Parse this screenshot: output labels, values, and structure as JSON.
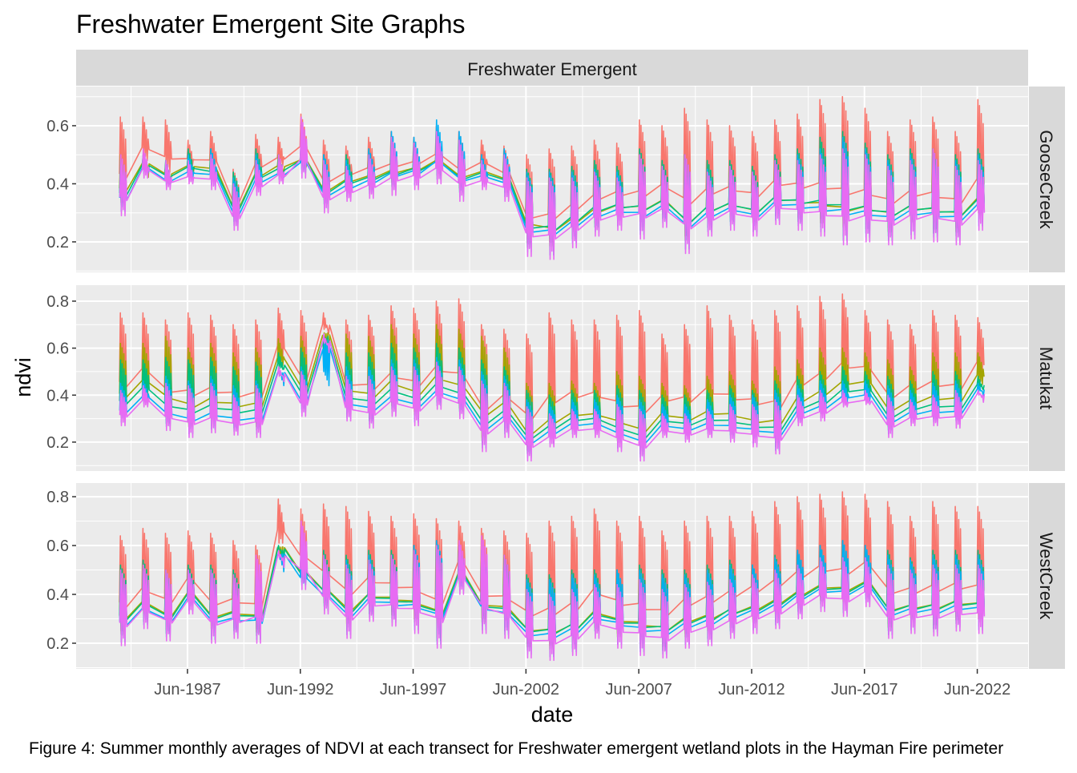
{
  "chart_data": {
    "type": "line",
    "title": "Freshwater Emergent Site Graphs",
    "facet_col_label": "Freshwater Emergent",
    "xlabel": "date",
    "ylabel": "ndvi",
    "caption": "Figure 4: Summer monthly averages of NDVI at each transect for Freshwater emergent wetland plots in the Hayman Fire perimeter",
    "x_ticks": [
      "Jun-1987",
      "Jun-1992",
      "Jun-1997",
      "Jun-2002",
      "Jun-2007",
      "Jun-2012",
      "Jun-2017",
      "Jun-2022"
    ],
    "x_tick_dates": [
      "1987-06-01",
      "1992-06-01",
      "1997-06-01",
      "2002-06-01",
      "2007-06-01",
      "2012-06-01",
      "2017-06-01",
      "2022-06-01"
    ],
    "xlim": [
      "1982-06-25",
      "2024-09-01"
    ],
    "grid": true,
    "legend": "none",
    "series_colors": [
      "#F8766D",
      "#A3A500",
      "#00BF7D",
      "#00B0F6",
      "#E76BF3"
    ],
    "years": [
      1984,
      1985,
      1986,
      1987,
      1988,
      1989,
      1990,
      1991,
      1992,
      1993,
      1994,
      1995,
      1996,
      1997,
      1998,
      1999,
      2000,
      2001,
      2002,
      2003,
      2004,
      2005,
      2006,
      2007,
      2008,
      2009,
      2010,
      2011,
      2012,
      2013,
      2014,
      2015,
      2016,
      2017,
      2018,
      2019,
      2020,
      2021,
      2022
    ],
    "panels": [
      {
        "label": "GooseCreek",
        "ylim": [
          0.095,
          0.735
        ],
        "y_ticks": [
          "0.2",
          "0.4",
          "0.6"
        ],
        "summer_low": [
          0.29,
          0.42,
          0.38,
          0.4,
          0.38,
          0.24,
          0.36,
          0.4,
          0.42,
          0.3,
          0.34,
          0.35,
          0.36,
          0.38,
          0.4,
          0.34,
          0.38,
          0.34,
          0.15,
          0.14,
          0.18,
          0.22,
          0.24,
          0.21,
          0.25,
          0.16,
          0.22,
          0.24,
          0.22,
          0.26,
          0.24,
          0.22,
          0.19,
          0.2,
          0.19,
          0.21,
          0.2,
          0.19,
          0.24
        ],
        "series_peaks": [
          [
            0.63,
            0.63,
            0.62,
            0.55,
            0.58,
            0.45,
            0.57,
            0.56,
            0.64,
            0.55,
            0.53,
            0.56,
            0.58,
            0.56,
            0.6,
            0.58,
            0.55,
            0.53,
            0.5,
            0.52,
            0.53,
            0.55,
            0.54,
            0.62,
            0.6,
            0.66,
            0.62,
            0.6,
            0.58,
            0.62,
            0.64,
            0.69,
            0.7,
            0.66,
            0.58,
            0.62,
            0.63,
            0.58,
            0.69
          ],
          [
            0.5,
            0.48,
            0.46,
            0.5,
            0.52,
            0.42,
            0.5,
            0.5,
            0.52,
            0.48,
            0.48,
            0.5,
            0.54,
            0.52,
            0.56,
            0.54,
            0.48,
            0.5,
            0.45,
            0.4,
            0.4,
            0.42,
            0.42,
            0.48,
            0.45,
            0.46,
            0.44,
            0.44,
            0.42,
            0.46,
            0.48,
            0.5,
            0.52,
            0.5,
            0.46,
            0.48,
            0.48,
            0.46,
            0.5
          ],
          [
            0.48,
            0.5,
            0.48,
            0.52,
            0.52,
            0.44,
            0.52,
            0.5,
            0.55,
            0.5,
            0.5,
            0.52,
            0.56,
            0.55,
            0.58,
            0.56,
            0.5,
            0.52,
            0.45,
            0.45,
            0.46,
            0.48,
            0.46,
            0.52,
            0.48,
            0.5,
            0.48,
            0.48,
            0.46,
            0.5,
            0.52,
            0.56,
            0.58,
            0.54,
            0.5,
            0.52,
            0.52,
            0.5,
            0.52
          ],
          [
            0.46,
            0.5,
            0.46,
            0.5,
            0.52,
            0.42,
            0.5,
            0.48,
            0.56,
            0.5,
            0.48,
            0.52,
            0.58,
            0.56,
            0.62,
            0.58,
            0.5,
            0.52,
            0.44,
            0.44,
            0.44,
            0.45,
            0.44,
            0.48,
            0.46,
            0.48,
            0.45,
            0.46,
            0.44,
            0.48,
            0.5,
            0.52,
            0.56,
            0.52,
            0.48,
            0.5,
            0.5,
            0.48,
            0.5
          ],
          [
            0.5,
            0.52,
            0.48,
            0.48,
            0.5,
            0.4,
            0.48,
            0.5,
            0.63,
            0.48,
            0.46,
            0.5,
            0.56,
            0.54,
            0.58,
            0.55,
            0.48,
            0.5,
            0.42,
            0.42,
            0.42,
            0.44,
            0.42,
            0.5,
            0.46,
            0.5,
            0.44,
            0.46,
            0.44,
            0.48,
            0.48,
            0.5,
            0.52,
            0.5,
            0.46,
            0.48,
            0.52,
            0.46,
            0.48
          ]
        ]
      },
      {
        "label": "Matukat",
        "ylim": [
          0.077,
          0.868
        ],
        "y_ticks": [
          "0.2",
          "0.4",
          "0.6",
          "0.8"
        ],
        "summer_low": [
          0.27,
          0.35,
          0.25,
          0.22,
          0.24,
          0.23,
          0.22,
          0.48,
          0.31,
          0.62,
          0.29,
          0.26,
          0.31,
          0.27,
          0.34,
          0.3,
          0.16,
          0.22,
          0.12,
          0.18,
          0.22,
          0.22,
          0.16,
          0.12,
          0.22,
          0.2,
          0.22,
          0.2,
          0.18,
          0.15,
          0.27,
          0.29,
          0.35,
          0.36,
          0.22,
          0.27,
          0.27,
          0.26,
          0.4
        ],
        "series_peaks": [
          [
            0.75,
            0.75,
            0.72,
            0.75,
            0.74,
            0.7,
            0.72,
            0.77,
            0.76,
            0.75,
            0.72,
            0.74,
            0.78,
            0.77,
            0.8,
            0.81,
            0.7,
            0.68,
            0.66,
            0.75,
            0.72,
            0.72,
            0.74,
            0.76,
            0.66,
            0.7,
            0.78,
            0.74,
            0.72,
            0.76,
            0.78,
            0.82,
            0.83,
            0.76,
            0.72,
            0.7,
            0.76,
            0.74,
            0.73
          ],
          [
            0.62,
            0.62,
            0.65,
            0.6,
            0.62,
            0.58,
            0.6,
            0.64,
            0.65,
            0.63,
            0.66,
            0.65,
            0.7,
            0.66,
            0.7,
            0.68,
            0.65,
            0.6,
            0.45,
            0.45,
            0.46,
            0.45,
            0.5,
            0.48,
            0.45,
            0.44,
            0.48,
            0.5,
            0.46,
            0.52,
            0.55,
            0.6,
            0.6,
            0.58,
            0.55,
            0.52,
            0.58,
            0.58,
            0.58
          ],
          [
            0.55,
            0.55,
            0.56,
            0.55,
            0.56,
            0.52,
            0.54,
            0.58,
            0.6,
            0.58,
            0.58,
            0.58,
            0.62,
            0.6,
            0.62,
            0.6,
            0.55,
            0.52,
            0.42,
            0.4,
            0.42,
            0.42,
            0.44,
            0.42,
            0.4,
            0.4,
            0.42,
            0.44,
            0.42,
            0.46,
            0.48,
            0.5,
            0.52,
            0.5,
            0.48,
            0.46,
            0.5,
            0.5,
            0.48
          ],
          [
            0.45,
            0.46,
            0.48,
            0.46,
            0.48,
            0.44,
            0.46,
            0.5,
            0.52,
            0.5,
            0.52,
            0.52,
            0.55,
            0.55,
            0.56,
            0.55,
            0.5,
            0.48,
            0.38,
            0.36,
            0.38,
            0.38,
            0.4,
            0.38,
            0.36,
            0.36,
            0.38,
            0.4,
            0.4,
            0.42,
            0.44,
            0.46,
            0.46,
            0.46,
            0.44,
            0.42,
            0.45,
            0.46,
            0.45
          ],
          [
            0.42,
            0.44,
            0.45,
            0.44,
            0.45,
            0.4,
            0.44,
            0.52,
            0.5,
            0.66,
            0.48,
            0.48,
            0.52,
            0.52,
            0.54,
            0.52,
            0.46,
            0.45,
            0.35,
            0.32,
            0.34,
            0.34,
            0.36,
            0.34,
            0.32,
            0.32,
            0.34,
            0.36,
            0.36,
            0.38,
            0.4,
            0.42,
            0.42,
            0.42,
            0.4,
            0.38,
            0.4,
            0.42,
            0.42
          ]
        ]
      },
      {
        "label": "WestCreek",
        "ylim": [
          0.095,
          0.856
        ],
        "y_ticks": [
          "0.2",
          "0.4",
          "0.6",
          "0.8"
        ],
        "summer_low": [
          0.19,
          0.26,
          0.21,
          0.32,
          0.2,
          0.22,
          0.2,
          0.55,
          0.42,
          0.32,
          0.22,
          0.29,
          0.27,
          0.24,
          0.18,
          0.4,
          0.24,
          0.22,
          0.14,
          0.13,
          0.15,
          0.22,
          0.18,
          0.15,
          0.14,
          0.18,
          0.19,
          0.22,
          0.24,
          0.26,
          0.3,
          0.33,
          0.31,
          0.35,
          0.22,
          0.24,
          0.23,
          0.25,
          0.24
        ],
        "series_peaks": [
          [
            0.64,
            0.67,
            0.65,
            0.66,
            0.65,
            0.62,
            0.6,
            0.79,
            0.75,
            0.77,
            0.76,
            0.74,
            0.72,
            0.73,
            0.71,
            0.7,
            0.67,
            0.66,
            0.65,
            0.7,
            0.72,
            0.75,
            0.7,
            0.72,
            0.66,
            0.7,
            0.72,
            0.72,
            0.74,
            0.78,
            0.8,
            0.81,
            0.82,
            0.81,
            0.78,
            0.72,
            0.78,
            0.76,
            0.76
          ],
          [
            0.5,
            0.52,
            0.48,
            0.5,
            0.5,
            0.48,
            0.48,
            0.58,
            0.56,
            0.55,
            0.55,
            0.55,
            0.56,
            0.58,
            0.6,
            0.58,
            0.56,
            0.55,
            0.45,
            0.45,
            0.46,
            0.48,
            0.48,
            0.5,
            0.46,
            0.48,
            0.5,
            0.5,
            0.5,
            0.54,
            0.56,
            0.58,
            0.6,
            0.58,
            0.55,
            0.52,
            0.55,
            0.55,
            0.55
          ],
          [
            0.52,
            0.54,
            0.5,
            0.52,
            0.52,
            0.5,
            0.5,
            0.6,
            0.58,
            0.58,
            0.56,
            0.58,
            0.58,
            0.6,
            0.62,
            0.6,
            0.58,
            0.56,
            0.48,
            0.48,
            0.5,
            0.5,
            0.5,
            0.52,
            0.5,
            0.5,
            0.52,
            0.54,
            0.52,
            0.56,
            0.58,
            0.6,
            0.62,
            0.6,
            0.58,
            0.55,
            0.58,
            0.58,
            0.58
          ],
          [
            0.48,
            0.5,
            0.48,
            0.5,
            0.5,
            0.46,
            0.48,
            0.56,
            0.55,
            0.55,
            0.54,
            0.56,
            0.56,
            0.6,
            0.62,
            0.6,
            0.58,
            0.54,
            0.46,
            0.46,
            0.48,
            0.48,
            0.5,
            0.5,
            0.48,
            0.48,
            0.5,
            0.52,
            0.52,
            0.55,
            0.58,
            0.6,
            0.62,
            0.6,
            0.56,
            0.54,
            0.56,
            0.56,
            0.56
          ],
          [
            0.5,
            0.52,
            0.5,
            0.5,
            0.5,
            0.48,
            0.56,
            0.58,
            0.7,
            0.56,
            0.52,
            0.54,
            0.56,
            0.58,
            0.6,
            0.62,
            0.64,
            0.56,
            0.42,
            0.4,
            0.42,
            0.44,
            0.44,
            0.46,
            0.42,
            0.44,
            0.45,
            0.46,
            0.48,
            0.5,
            0.52,
            0.55,
            0.55,
            0.55,
            0.52,
            0.5,
            0.52,
            0.52,
            0.52
          ]
        ]
      }
    ]
  }
}
